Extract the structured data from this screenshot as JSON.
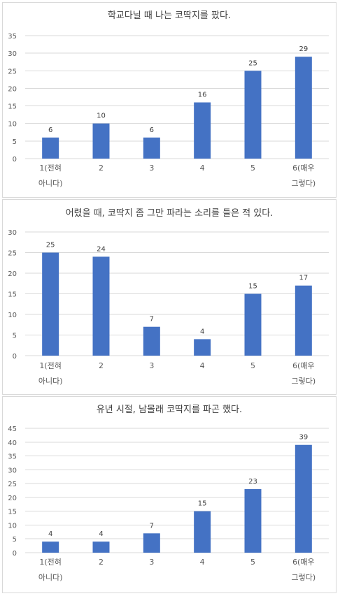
{
  "chart_data": [
    {
      "type": "bar",
      "title": "학교다닐 때 나는 코딱지를 팠다.",
      "categories": [
        [
          "1(전혀",
          "아니다)"
        ],
        [
          "2"
        ],
        [
          "3"
        ],
        [
          "4"
        ],
        [
          "5"
        ],
        [
          "6(매우",
          "그렇다)"
        ]
      ],
      "values": [
        6,
        10,
        6,
        16,
        25,
        29
      ],
      "ylim": [
        0,
        35
      ],
      "yticks": [
        0,
        5,
        10,
        15,
        20,
        25,
        30,
        35
      ],
      "grid": true,
      "data_labels": true,
      "bar_color": "#4472C4"
    },
    {
      "type": "bar",
      "title": "어렸을 때, 코딱지 좀 그만 파라는 소리를 들은 적 있다.",
      "categories": [
        [
          "1(전혀",
          "아니다)"
        ],
        [
          "2"
        ],
        [
          "3"
        ],
        [
          "4"
        ],
        [
          "5"
        ],
        [
          "6(매우",
          "그렇다)"
        ]
      ],
      "values": [
        25,
        24,
        7,
        4,
        15,
        17
      ],
      "ylim": [
        0,
        30
      ],
      "yticks": [
        0,
        5,
        10,
        15,
        20,
        25,
        30
      ],
      "grid": true,
      "data_labels": true,
      "bar_color": "#4472C4"
    },
    {
      "type": "bar",
      "title": "유년 시절, 남몰래 코딱지를 파곤 했다.",
      "categories": [
        [
          "1(전혀",
          "아니다)"
        ],
        [
          "2"
        ],
        [
          "3"
        ],
        [
          "4"
        ],
        [
          "5"
        ],
        [
          "6(매우",
          "그렇다)"
        ]
      ],
      "values": [
        4,
        4,
        7,
        15,
        23,
        39
      ],
      "ylim": [
        0,
        45
      ],
      "yticks": [
        0,
        5,
        10,
        15,
        20,
        25,
        30,
        35,
        40,
        45
      ],
      "grid": true,
      "data_labels": true,
      "bar_color": "#4472C4"
    }
  ]
}
